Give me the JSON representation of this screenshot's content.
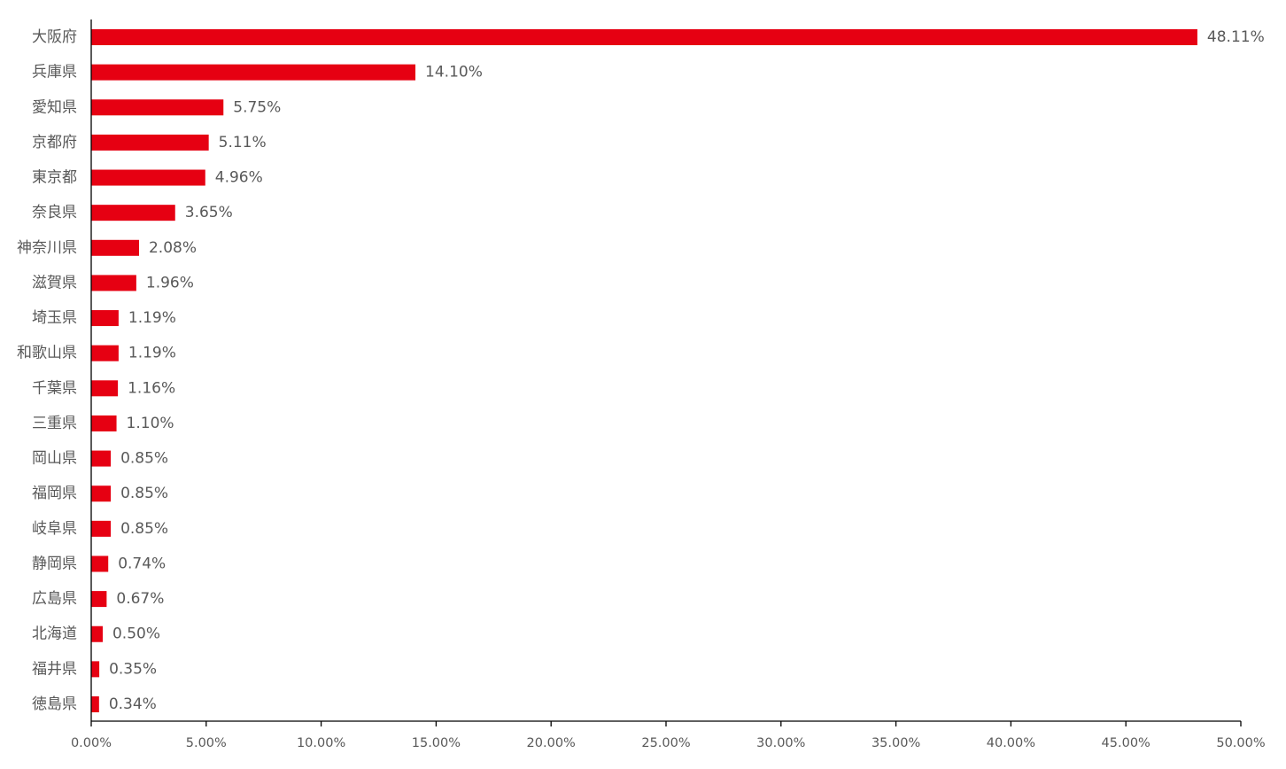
{
  "chart_data": {
    "type": "bar",
    "orientation": "horizontal",
    "title": "",
    "xlabel": "",
    "ylabel": "",
    "xlim": [
      0,
      50
    ],
    "x_ticks": [
      0,
      5,
      10,
      15,
      20,
      25,
      30,
      35,
      40,
      45,
      50
    ],
    "x_tick_labels": [
      "0.00%",
      "5.00%",
      "10.00%",
      "15.00%",
      "20.00%",
      "25.00%",
      "30.00%",
      "35.00%",
      "40.00%",
      "45.00%",
      "50.00%"
    ],
    "grid": false,
    "legend": "none",
    "bar_color": "#e60012",
    "categories": [
      "大阪府",
      "兵庫県",
      "愛知県",
      "京都府",
      "東京都",
      "奈良県",
      "神奈川県",
      "滋賀県",
      "埼玉県",
      "和歌山県",
      "千葉県",
      "三重県",
      "岡山県",
      "福岡県",
      "岐阜県",
      "静岡県",
      "広島県",
      "北海道",
      "福井県",
      "徳島県"
    ],
    "values": [
      48.11,
      14.1,
      5.75,
      5.11,
      4.96,
      3.65,
      2.08,
      1.96,
      1.19,
      1.19,
      1.16,
      1.1,
      0.85,
      0.85,
      0.85,
      0.74,
      0.67,
      0.5,
      0.35,
      0.34
    ],
    "data_labels": [
      "48.11%",
      "14.10%",
      "5.75%",
      "5.11%",
      "4.96%",
      "3.65%",
      "2.08%",
      "1.96%",
      "1.19%",
      "1.19%",
      "1.16%",
      "1.10%",
      "0.85%",
      "0.85%",
      "0.85%",
      "0.74%",
      "0.67%",
      "0.50%",
      "0.35%",
      "0.34%"
    ]
  }
}
